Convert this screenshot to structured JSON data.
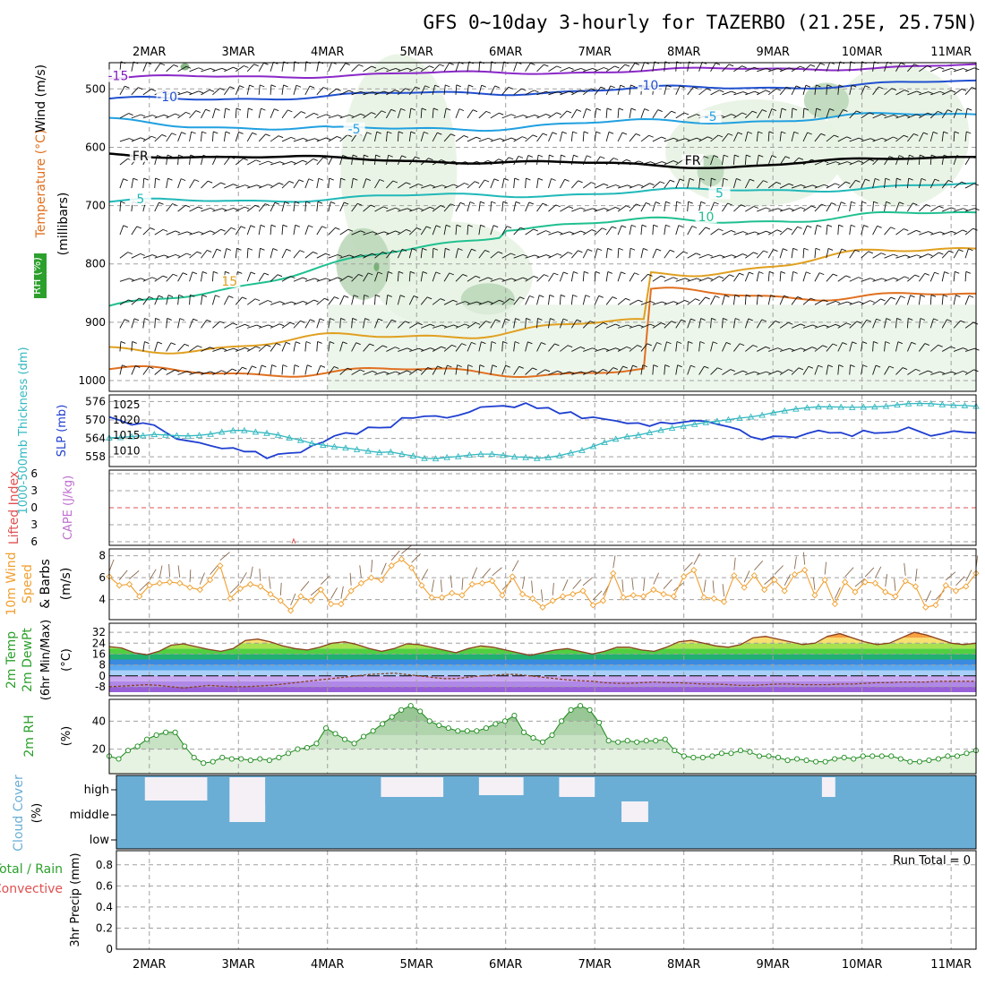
{
  "chart_data": {
    "type": "meteogram",
    "title": "GFS 0~10day 3-hourly for TAZERBO (21.25E, 25.75N)",
    "x_dates": [
      "2MAR",
      "3MAR",
      "4MAR",
      "5MAR",
      "6MAR",
      "7MAR",
      "8MAR",
      "9MAR",
      "10MAR",
      "11MAR"
    ],
    "x_start_day": 1.55,
    "x_end_day": 11.28,
    "colors": {
      "grid": "#a0a0a0",
      "rh_green_light": "#e6f2e2",
      "rh_green_mid": "#b8d6b6",
      "rh_green_dark": "#6fa86c",
      "slp_line": "#1f3fd0",
      "thickness_line": "#33b8c0",
      "wind_speed": "#f0a030",
      "barb": "#8a6a50",
      "rh_line": "#1a8a1a",
      "cloud_blue": "#6aaed6",
      "lifted_index": "#e05050"
    },
    "panels": {
      "upper_air": {
        "ylabel_wind": "Wind (m/s)",
        "ylabel_temp": "Temperature (°C)",
        "ylabel_rh": "RH (%)",
        "ylabel_units": "(millibars)",
        "yticks": [
          500,
          600,
          700,
          800,
          900,
          1000
        ],
        "contour_labels": [
          {
            "text": "-15",
            "day": 1.65,
            "p": 482,
            "color": "#8020c0"
          },
          {
            "text": "-10",
            "day": 2.2,
            "p": 518,
            "color": "#2050d0"
          },
          {
            "text": "-10",
            "day": 7.6,
            "p": 498,
            "color": "#2050d0"
          },
          {
            "text": "-5",
            "day": 4.3,
            "p": 573,
            "color": "#20a0e0"
          },
          {
            "text": "-5",
            "day": 8.3,
            "p": 552,
            "color": "#20a0e0"
          },
          {
            "text": "FR",
            "day": 1.9,
            "p": 619,
            "color": "#000000"
          },
          {
            "text": "FR",
            "day": 8.1,
            "p": 627,
            "color": "#000000"
          },
          {
            "text": "5",
            "day": 1.9,
            "p": 693,
            "color": "#20b8b8"
          },
          {
            "text": "5",
            "day": 8.4,
            "p": 683,
            "color": "#20b8b8"
          },
          {
            "text": "10",
            "day": 8.25,
            "p": 724,
            "color": "#20c090"
          },
          {
            "text": "15",
            "day": 2.9,
            "p": 834,
            "color": "#e0a020"
          }
        ]
      },
      "slp_thickness": {
        "ylabel_thickness": "1000-500mb Thickness (dm)",
        "ylabel_slp": "SLP (mb)",
        "left_ticks": [
          558,
          564,
          570,
          576
        ],
        "right_ticks": [
          1010,
          1015,
          1020,
          1025
        ],
        "slp_values": [
          1021,
          1019.8,
          1018.4,
          1019,
          1018.3,
          1016,
          1013.8,
          1013.2,
          1012.6,
          1011.6,
          1010.7,
          1010.9,
          1009.7,
          1009.7,
          1007.5,
          1008.9,
          1009.2,
          1009.4,
          1011.6,
          1012.8,
          1014.8,
          1015.8,
          1015.4,
          1017.6,
          1017.5,
          1017.6,
          1020.7,
          1020.6,
          1021.2,
          1021.3,
          1020.7,
          1021.5,
          1022.6,
          1024.2,
          1024.4,
          1024.6,
          1024.1,
          1025.5,
          1023.8,
          1024,
          1022.1,
          1022.6,
          1020.5,
          1020.9,
          1020.3,
          1019.7,
          1018.9,
          1019,
          1018,
          1019.2,
          1018.8,
          1019.3,
          1019.8,
          1019.6,
          1018.6,
          1017.8,
          1016.8,
          1014.5,
          1013.6,
          1014.7,
          1014.6,
          1014.3,
          1015.6,
          1016.6,
          1015.8,
          1015.9,
          1014.7,
          1016.6,
          1015.7,
          1015.9,
          1016.2,
          1017.6,
          1016.2,
          1014.8,
          1015.5,
          1016.4,
          1016,
          1015.8
        ],
        "thickness_values": [
          564.2,
          564.3,
          564.6,
          564.9,
          565.3,
          565.1,
          564.9,
          564.8,
          565,
          565.4,
          566.1,
          566.6,
          566.6,
          566.1,
          565.7,
          565.1,
          564.2,
          563.4,
          562.4,
          561.8,
          561.3,
          560.9,
          560.4,
          559.9,
          559.4,
          559.6,
          558.9,
          558.3,
          557.5,
          557.4,
          557.8,
          558.1,
          558.6,
          558.9,
          558.9,
          558.5,
          558,
          557.8,
          557.5,
          557.8,
          558.4,
          559.3,
          560.1,
          561.4,
          562.7,
          563.8,
          564.6,
          565.1,
          565.9,
          566.7,
          567.4,
          568,
          568.6,
          569.2,
          569.6,
          570.1,
          570.6,
          571,
          571.6,
          572.4,
          573,
          573.6,
          574,
          574.3,
          574.3,
          574.2,
          574.1,
          574.2,
          574.3,
          574.5,
          574.9,
          575.3,
          575.4,
          575.3,
          575,
          574.8,
          574.7,
          574.5
        ]
      },
      "cape_li": {
        "ylabel_li": "Lifted Index",
        "ylabel_cape": "CAPE (J/kg)",
        "yticks": [
          -6,
          -3,
          0,
          3,
          6
        ],
        "ytick_labels": [
          "6",
          "3",
          "0",
          "3",
          "6"
        ]
      },
      "wind10": {
        "ylabel": "10m Wind Speed & Barbs (m/s)",
        "ylabel_1": "10m Wind",
        "ylabel_2": "Speed",
        "ylabel_3": "& Barbs",
        "ylabel_units": "(m/s)",
        "yticks": [
          4,
          6,
          8
        ],
        "values": [
          6.1,
          5.3,
          5.4,
          4.3,
          5.3,
          5.5,
          5.6,
          5.5,
          5.1,
          4.9,
          5.8,
          7.1,
          4.1,
          5.0,
          5.4,
          5.2,
          4.5,
          3.9,
          3.0,
          4.3,
          3.9,
          4.9,
          3.6,
          3.6,
          4.8,
          5.5,
          6.0,
          5.8,
          7.1,
          7.7,
          6.9,
          5.3,
          4.2,
          4.2,
          4.6,
          4.4,
          5.4,
          5.5,
          5.7,
          4.4,
          6.1,
          4.5,
          4.1,
          3.3,
          3.9,
          4.3,
          4.5,
          4.8,
          3.5,
          3.9,
          6.4,
          4.2,
          4.4,
          4.3,
          4.9,
          4.5,
          4.3,
          6.1,
          6.7,
          4.2,
          4.1,
          3.8,
          6.2,
          5.1,
          6.2,
          4.9,
          5.8,
          4.8,
          6.3,
          6.7,
          4.4,
          5.8,
          3.6,
          5.6,
          4.7,
          5.6,
          5.5,
          4.7,
          4.3,
          5.7,
          5.2,
          3.3,
          3.5,
          5.3,
          4.8,
          5.2,
          6.4
        ]
      },
      "temp2m": {
        "ylabel_1": "2m Temp",
        "ylabel_2": "2m DewPt",
        "ylabel_3": "(6hr Min/Max)",
        "ylabel_units": "(°C)",
        "yticks": [
          -8,
          0,
          8,
          16,
          24,
          32
        ],
        "values": [
          21.5,
          20.5,
          17,
          15.5,
          18,
          22.5,
          23.5,
          21.5,
          19.5,
          18,
          20,
          26,
          27,
          25,
          22,
          20,
          19,
          21,
          24,
          25,
          23,
          20,
          18,
          20,
          23.5,
          23,
          21,
          19,
          17,
          20,
          22,
          21,
          19,
          17,
          15,
          17,
          19,
          20,
          18,
          16,
          18,
          21,
          21,
          19,
          18,
          21,
          25,
          26,
          24,
          22,
          21,
          23,
          28,
          29,
          27,
          25,
          23,
          24,
          29,
          31,
          28,
          25,
          23,
          24,
          28,
          32,
          30,
          27,
          24,
          23,
          24
        ],
        "dew_values": [
          -8,
          -7.5,
          -7,
          -6.5,
          -7,
          -8,
          -9,
          -8,
          -7,
          -7.5,
          -8,
          -8,
          -7.5,
          -7,
          -6,
          -5,
          -4,
          -3,
          -2,
          -1,
          0,
          1,
          1.5,
          2,
          1,
          0,
          -1,
          -2,
          -2,
          -1,
          0,
          0.5,
          1,
          1,
          0,
          -1,
          -2,
          -3,
          -3.5,
          -4,
          -5,
          -5.5,
          -5.5,
          -5,
          -4.5,
          -5,
          -5,
          -5.5,
          -6,
          -6,
          -6.5,
          -7,
          -7,
          -6.5,
          -6,
          -6,
          -6.5,
          -6.5,
          -6.5,
          -6,
          -6,
          -5.5,
          -5,
          -5,
          -4.5,
          -4.5,
          -4.5,
          -4,
          -4,
          -4,
          -4
        ]
      },
      "rh2m": {
        "ylabel_1": "2m RH",
        "ylabel_units": "(%)",
        "yticks": [
          20,
          40
        ],
        "values": [
          15,
          13,
          19,
          22,
          27,
          30,
          32,
          32,
          22,
          14,
          10,
          11,
          14,
          13,
          13,
          12,
          13,
          12,
          14,
          17,
          20,
          21,
          24,
          35,
          31,
          27,
          24,
          29,
          33,
          38,
          43,
          48,
          51,
          47,
          40,
          37,
          35,
          33,
          33,
          33,
          35,
          38,
          40,
          44,
          32,
          28,
          25,
          30,
          40,
          48,
          51,
          48,
          39,
          26,
          25,
          26,
          25,
          26,
          26,
          27,
          19,
          15,
          14,
          14,
          15,
          17,
          17,
          19,
          18,
          15,
          15,
          14,
          12,
          13,
          12,
          11,
          11,
          13,
          14,
          13,
          15,
          15,
          15,
          15,
          13,
          11,
          11,
          12,
          13,
          15,
          15,
          17,
          19
        ]
      },
      "cloud": {
        "ylabel": "Cloud Cover (%)",
        "ylabel_1": "Cloud Cover",
        "ylabel_units": "(%)",
        "levels": [
          "high",
          "middle",
          "low"
        ]
      },
      "precip": {
        "ylabel_1": "Total / Rain",
        "ylabel_2": "Convective",
        "ylabel_3": "3hr Precip (mm)",
        "yticks": [
          0,
          0.2,
          0.4,
          0.6,
          0.8
        ],
        "run_total": "Run Total = 0"
      }
    }
  }
}
